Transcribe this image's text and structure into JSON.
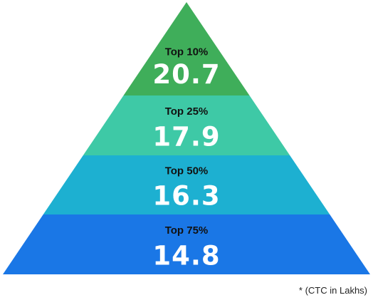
{
  "chart_data": {
    "type": "pyramid",
    "tiers": [
      {
        "label": "Top 10%",
        "value": "20.7",
        "color": "#3fae5a"
      },
      {
        "label": "Top 25%",
        "value": "17.9",
        "color": "#3ec9a6"
      },
      {
        "label": "Top 50%",
        "value": "16.3",
        "color": "#1db0d1"
      },
      {
        "label": "Top 75%",
        "value": "14.8",
        "color": "#1a77e6"
      }
    ]
  },
  "footnote": "* (CTC in Lakhs)"
}
